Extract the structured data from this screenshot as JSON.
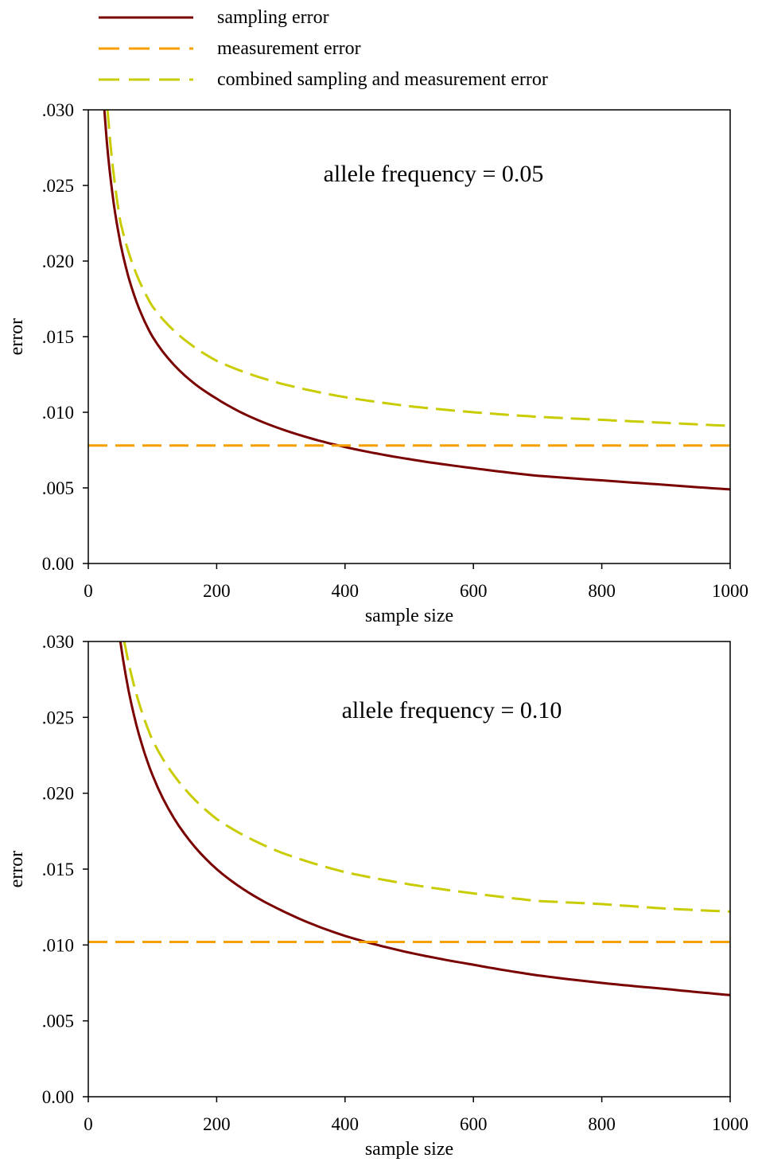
{
  "legend": {
    "items": [
      {
        "label": "sampling error",
        "color": "#7a0000",
        "dash": "solid"
      },
      {
        "label": "measurement error",
        "color": "#f5a000",
        "dash": "dashed"
      },
      {
        "label": "combined sampling and measurement error",
        "color": "#c8cc00",
        "dash": "dashed"
      }
    ]
  },
  "chart_data": [
    {
      "type": "line",
      "annotation": "allele frequency = 0.05",
      "xlabel": "sample size",
      "ylabel": "error",
      "xlim": [
        0,
        1000
      ],
      "ylim": [
        0,
        0.03
      ],
      "x_ticks": [
        "0",
        "200",
        "400",
        "600",
        "800",
        "1000"
      ],
      "y_ticks": [
        "0.00",
        ".005",
        ".010",
        ".015",
        ".020",
        ".025",
        ".030"
      ],
      "grid": false,
      "series": [
        {
          "name": "sampling error",
          "color": "#7a0000",
          "x": [
            25,
            50,
            100,
            200,
            300,
            400,
            500,
            600,
            700,
            800,
            900,
            1000
          ],
          "y": [
            0.03,
            0.0212,
            0.015,
            0.0109,
            0.0089,
            0.0077,
            0.0069,
            0.0063,
            0.0058,
            0.0055,
            0.0052,
            0.0049
          ]
        },
        {
          "name": "measurement error",
          "color": "#f5a000",
          "x": [
            0,
            1000
          ],
          "y": [
            0.0078,
            0.0078
          ]
        },
        {
          "name": "combined sampling and measurement error",
          "color": "#c8cc00",
          "x": [
            30,
            50,
            100,
            200,
            300,
            400,
            500,
            600,
            700,
            800,
            900,
            1000
          ],
          "y": [
            0.03,
            0.0226,
            0.017,
            0.0134,
            0.0119,
            0.011,
            0.0104,
            0.01,
            0.0097,
            0.0095,
            0.0093,
            0.0091
          ]
        }
      ]
    },
    {
      "type": "line",
      "annotation": "allele frequency = 0.10",
      "xlabel": "sample size",
      "ylabel": "error",
      "xlim": [
        0,
        1000
      ],
      "ylim": [
        0,
        0.03
      ],
      "x_ticks": [
        "0",
        "200",
        "400",
        "600",
        "800",
        "1000"
      ],
      "y_ticks": [
        "0.00",
        ".005",
        ".010",
        ".015",
        ".020",
        ".025",
        ".030"
      ],
      "grid": false,
      "series": [
        {
          "name": "sampling error",
          "color": "#7a0000",
          "x": [
            50,
            100,
            200,
            300,
            400,
            500,
            600,
            700,
            800,
            900,
            1000
          ],
          "y": [
            0.03,
            0.0212,
            0.015,
            0.0123,
            0.0106,
            0.0095,
            0.0087,
            0.008,
            0.0075,
            0.0071,
            0.0067
          ]
        },
        {
          "name": "measurement error",
          "color": "#f5a000",
          "x": [
            0,
            1000
          ],
          "y": [
            0.0102,
            0.0102
          ]
        },
        {
          "name": "combined sampling and measurement error",
          "color": "#c8cc00",
          "x": [
            56,
            100,
            200,
            300,
            400,
            500,
            600,
            700,
            800,
            900,
            1000
          ],
          "y": [
            0.03,
            0.0235,
            0.0183,
            0.0161,
            0.0148,
            0.014,
            0.0134,
            0.0129,
            0.0127,
            0.0124,
            0.0122
          ]
        }
      ]
    }
  ]
}
